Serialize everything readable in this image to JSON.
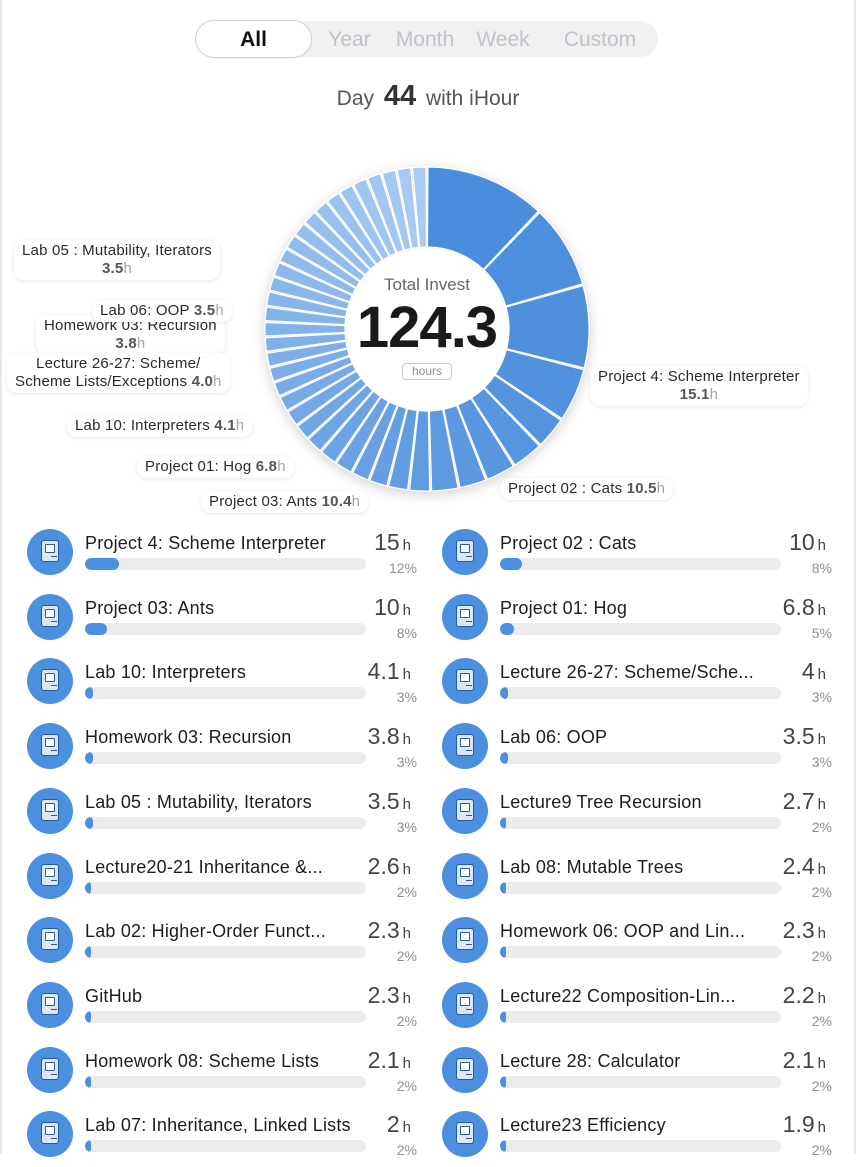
{
  "tabs": [
    {
      "label": "All",
      "active": true
    },
    {
      "label": "Year",
      "active": false
    },
    {
      "label": "Month",
      "active": false
    },
    {
      "label": "Week",
      "active": false
    },
    {
      "label": "Custom",
      "active": false
    }
  ],
  "header": {
    "day_prefix": "Day",
    "day_number": "44",
    "day_suffix": "with iHour"
  },
  "summary": {
    "title": "Total Invest",
    "value": "124.3",
    "unit": "hours"
  },
  "colors": {
    "accent": "#4a8fe0",
    "segment_light": "#a9cbf3",
    "segment_dark": "#4a8ddc",
    "track": "#ececee"
  },
  "icon": "computer-icon",
  "chart_data": {
    "type": "pie",
    "total": 124.3,
    "unit": "h",
    "slices": [
      {
        "name": "Project 4: Scheme Interpreter",
        "value": 15.1,
        "callout": [
          "Project 4: Scheme Interpreter",
          "15.1",
          "h"
        ]
      },
      {
        "name": "Project 02 : Cats",
        "value": 10.5,
        "callout": [
          "Project 02 : Cats",
          "10.5",
          "h"
        ]
      },
      {
        "name": "Project 03: Ants",
        "value": 10.4,
        "callout": [
          "Project 03: Ants",
          "10.4",
          "h"
        ]
      },
      {
        "name": "Project 01: Hog",
        "value": 6.8,
        "callout": [
          "Project 01: Hog",
          "6.8",
          "h"
        ]
      },
      {
        "name": "Lab 10: Interpreters",
        "value": 4.1,
        "callout": [
          "Lab 10: Interpreters",
          "4.1",
          "h"
        ]
      },
      {
        "name": "Lecture 26-27: Scheme/Scheme Lists/Exceptions",
        "value": 4.0,
        "callout": [
          "Lecture 26-27: Scheme/",
          "Scheme Lists/Exceptions",
          "4.0",
          "h"
        ]
      },
      {
        "name": "Homework 03: Recursion",
        "value": 3.8,
        "callout": [
          "Homework 03: Recursion",
          "3.8",
          "h"
        ]
      },
      {
        "name": "Lab 06: OOP",
        "value": 3.5,
        "callout": [
          "Lab 06: OOP",
          "3.5",
          "h"
        ]
      },
      {
        "name": "Lab 05 : Mutability, Iterators",
        "value": 3.5,
        "callout": [
          "Lab 05 : Mutability, Iterators",
          "3.5",
          "h"
        ]
      },
      {
        "name": "Lecture9 Tree Recursion",
        "value": 2.7
      },
      {
        "name": "Lecture20-21 Inheritance &...",
        "value": 2.6
      },
      {
        "name": "Lab 08: Mutable Trees",
        "value": 2.4
      },
      {
        "name": "Lab 02: Higher-Order Funct...",
        "value": 2.3
      },
      {
        "name": "Homework 06: OOP and Lin...",
        "value": 2.3
      },
      {
        "name": "GitHub",
        "value": 2.3
      },
      {
        "name": "Lecture22 Composition-Lin...",
        "value": 2.2
      },
      {
        "name": "Homework 08: Scheme Lists",
        "value": 2.1
      },
      {
        "name": "Lecture 28: Calculator",
        "value": 2.1
      },
      {
        "name": "Lab 07: Inheritance, Linked Lists",
        "value": 2.0
      },
      {
        "name": "Lecture23 Efficiency",
        "value": 1.9
      }
    ],
    "remaining_small_slices": 20
  },
  "items": [
    {
      "name": "Project 4: Scheme Interpreter",
      "hours": "15",
      "unit": "h",
      "percent_label": "12%",
      "percent": 12
    },
    {
      "name": "Project 02 : Cats",
      "hours": "10",
      "unit": "h",
      "percent_label": "8%",
      "percent": 8
    },
    {
      "name": "Project 03: Ants",
      "hours": "10",
      "unit": "h",
      "percent_label": "8%",
      "percent": 8
    },
    {
      "name": "Project 01: Hog",
      "hours": "6.8",
      "unit": "h",
      "percent_label": "5%",
      "percent": 5
    },
    {
      "name": "Lab 10: Interpreters",
      "hours": "4.1",
      "unit": "h",
      "percent_label": "3%",
      "percent": 3
    },
    {
      "name": "Lecture 26-27: Scheme/Sche...",
      "hours": "4",
      "unit": "h",
      "percent_label": "3%",
      "percent": 3
    },
    {
      "name": "Homework 03: Recursion",
      "hours": "3.8",
      "unit": "h",
      "percent_label": "3%",
      "percent": 3
    },
    {
      "name": "Lab 06: OOP",
      "hours": "3.5",
      "unit": "h",
      "percent_label": "3%",
      "percent": 3
    },
    {
      "name": "Lab 05 : Mutability, Iterators",
      "hours": "3.5",
      "unit": "h",
      "percent_label": "3%",
      "percent": 3
    },
    {
      "name": "Lecture9 Tree Recursion",
      "hours": "2.7",
      "unit": "h",
      "percent_label": "2%",
      "percent": 2
    },
    {
      "name": "Lecture20-21 Inheritance &...",
      "hours": "2.6",
      "unit": "h",
      "percent_label": "2%",
      "percent": 2
    },
    {
      "name": "Lab 08: Mutable Trees",
      "hours": "2.4",
      "unit": "h",
      "percent_label": "2%",
      "percent": 2
    },
    {
      "name": "Lab 02: Higher-Order Funct...",
      "hours": "2.3",
      "unit": "h",
      "percent_label": "2%",
      "percent": 2
    },
    {
      "name": "Homework 06: OOP and Lin...",
      "hours": "2.3",
      "unit": "h",
      "percent_label": "2%",
      "percent": 2
    },
    {
      "name": "GitHub",
      "hours": "2.3",
      "unit": "h",
      "percent_label": "2%",
      "percent": 2
    },
    {
      "name": "Lecture22 Composition-Lin...",
      "hours": "2.2",
      "unit": "h",
      "percent_label": "2%",
      "percent": 2
    },
    {
      "name": "Homework 08: Scheme Lists",
      "hours": "2.1",
      "unit": "h",
      "percent_label": "2%",
      "percent": 2
    },
    {
      "name": "Lecture 28: Calculator",
      "hours": "2.1",
      "unit": "h",
      "percent_label": "2%",
      "percent": 2
    },
    {
      "name": "Lab 07: Inheritance, Linked Lists",
      "hours": "2",
      "unit": "h",
      "percent_label": "2%",
      "percent": 2
    },
    {
      "name": "Lecture23 Efficiency",
      "hours": "1.9",
      "unit": "h",
      "percent_label": "2%",
      "percent": 2
    }
  ]
}
